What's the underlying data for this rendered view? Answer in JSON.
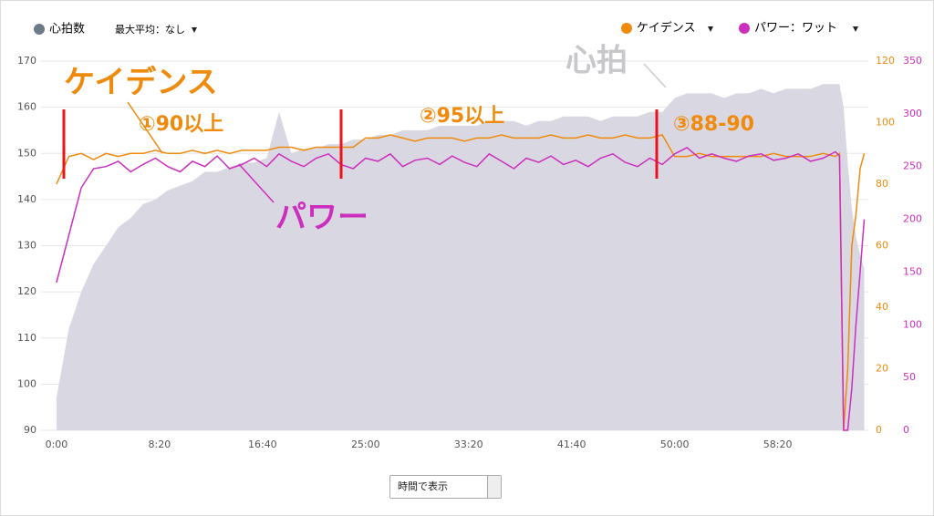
{
  "chart_data": {
    "type": "line",
    "x": [
      0,
      60,
      120,
      180,
      240,
      300,
      360,
      420,
      480,
      540,
      600,
      660,
      720,
      780,
      840,
      900,
      960,
      1020,
      1080,
      1140,
      1200,
      1260,
      1320,
      1380,
      1440,
      1500,
      1560,
      1620,
      1680,
      1740,
      1800,
      1860,
      1920,
      1980,
      2040,
      2100,
      2160,
      2220,
      2280,
      2340,
      2400,
      2460,
      2520,
      2580,
      2640,
      2700,
      2760,
      2820,
      2880,
      2940,
      3000,
      3060,
      3120,
      3180,
      3240,
      3300,
      3360,
      3420,
      3480,
      3540,
      3600,
      3660,
      3720,
      3780,
      3800,
      3820,
      3840,
      3860,
      3880,
      3900,
      3920
    ],
    "series": [
      {
        "name": "心拍数",
        "color": "#d9d7e2",
        "legend_color": "#6e7a8a",
        "fill": true,
        "axis": "y",
        "values": [
          97,
          112,
          120,
          126,
          130,
          134,
          136,
          139,
          140,
          142,
          143,
          144,
          146,
          146,
          147,
          148,
          148,
          149,
          159,
          150,
          151,
          151,
          152,
          152,
          153,
          153,
          154,
          154,
          155,
          155,
          155,
          156,
          156,
          156,
          156,
          157,
          157,
          157,
          156,
          157,
          157,
          158,
          158,
          158,
          157,
          158,
          158,
          158,
          159,
          159,
          162,
          163,
          163,
          163,
          162,
          163,
          163,
          164,
          163,
          164,
          164,
          164,
          165,
          165,
          165,
          160,
          148,
          138,
          132,
          128,
          125
        ]
      },
      {
        "name": "ケイデンス",
        "color": "#ef8a0c",
        "axis": "y2",
        "values": [
          80,
          89,
          90,
          88,
          90,
          89,
          90,
          90,
          91,
          90,
          90,
          91,
          90,
          91,
          90,
          91,
          91,
          91,
          92,
          92,
          91,
          92,
          92,
          92,
          92,
          95,
          95,
          96,
          95,
          94,
          95,
          95,
          95,
          94,
          95,
          95,
          96,
          95,
          95,
          95,
          96,
          95,
          95,
          96,
          95,
          95,
          96,
          95,
          95,
          96,
          89,
          89,
          90,
          89,
          89,
          89,
          89,
          89,
          90,
          89,
          89,
          89,
          90,
          89,
          90,
          0,
          20,
          60,
          70,
          85,
          90
        ]
      },
      {
        "name": "パワー：ワット",
        "color": "#cc2fbd",
        "axis": "y3",
        "values": [
          140,
          185,
          230,
          248,
          250,
          255,
          245,
          252,
          258,
          250,
          245,
          255,
          250,
          260,
          248,
          252,
          258,
          250,
          262,
          255,
          250,
          258,
          262,
          252,
          248,
          258,
          255,
          262,
          250,
          256,
          258,
          252,
          260,
          254,
          250,
          262,
          255,
          248,
          258,
          254,
          260,
          252,
          256,
          250,
          258,
          262,
          254,
          250,
          258,
          252,
          262,
          268,
          258,
          262,
          258,
          255,
          260,
          262,
          256,
          258,
          262,
          255,
          258,
          264,
          260,
          0,
          0,
          40,
          100,
          150,
          200
        ]
      }
    ],
    "xlim": [
      -75,
      3940
    ],
    "xticks": [
      {
        "value": 0,
        "label": "0:00"
      },
      {
        "value": 500,
        "label": "8:20"
      },
      {
        "value": 1000,
        "label": "16:40"
      },
      {
        "value": 1500,
        "label": "25:00"
      },
      {
        "value": 2000,
        "label": "33:20"
      },
      {
        "value": 2500,
        "label": "41:40"
      },
      {
        "value": 3000,
        "label": "50:00"
      },
      {
        "value": 3500,
        "label": "58:20"
      }
    ],
    "ylim": [
      90,
      170
    ],
    "yticks": [
      90,
      100,
      110,
      120,
      130,
      140,
      150,
      160,
      170
    ],
    "y2lim": [
      0,
      120
    ],
    "y2ticks": [
      0,
      20,
      40,
      60,
      80,
      100,
      120
    ],
    "y3lim": [
      0,
      350
    ],
    "y3ticks": [
      0,
      50,
      100,
      150,
      200,
      250,
      300,
      350
    ],
    "grid": true,
    "controls": {
      "max_average": "最大平均：なし",
      "view": "時間で表示"
    },
    "annotations": [
      "ケイデンス",
      "①90以上",
      "②95以上",
      "③88-90",
      "心拍",
      "パワー"
    ]
  }
}
